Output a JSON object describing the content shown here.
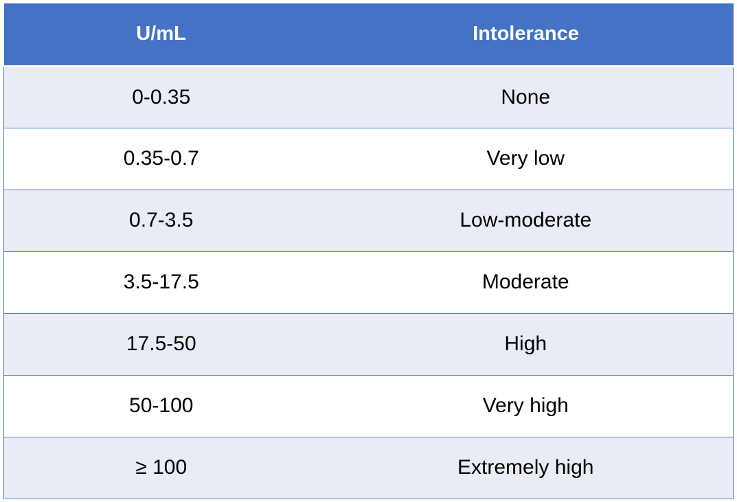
{
  "table": {
    "headers": [
      "U/mL",
      "Intolerance"
    ],
    "rows": [
      [
        "0-0.35",
        "None"
      ],
      [
        "0.35-0.7",
        "Very low"
      ],
      [
        "0.7-3.5",
        "Low-moderate"
      ],
      [
        "3.5-17.5",
        "Moderate"
      ],
      [
        "17.5-50",
        "High"
      ],
      [
        "50-100",
        "Very high"
      ],
      [
        "≥ 100",
        "Extremely high"
      ]
    ]
  },
  "colors": {
    "header_bg": "#4472c4",
    "header_text": "#ffffff",
    "row_band": "#e9ebf5",
    "row_plain": "#ffffff",
    "border": "#4f7fc8"
  }
}
